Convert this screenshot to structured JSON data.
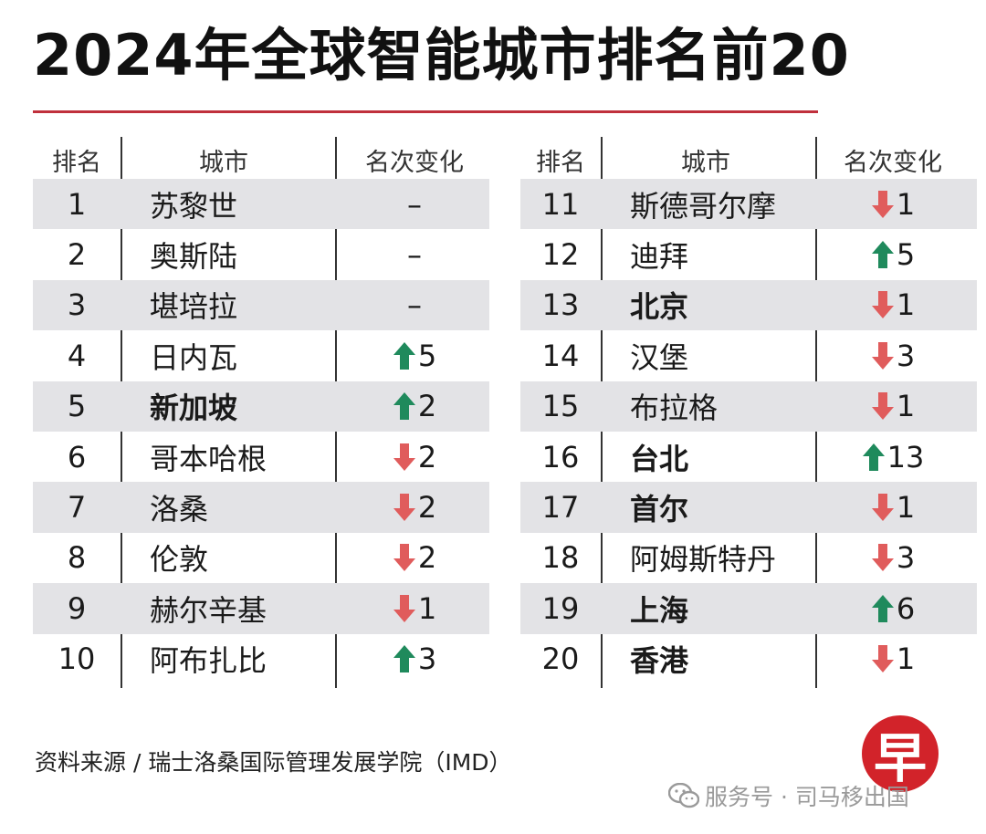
{
  "title": "2024年全球智能城市排名前20",
  "headers": {
    "rank": "排名",
    "city": "城市",
    "change": "名次变化"
  },
  "left_rows": [
    {
      "rank": "1",
      "city": "苏黎世",
      "bold": false,
      "dir": "none",
      "change": "–"
    },
    {
      "rank": "2",
      "city": "奥斯陆",
      "bold": false,
      "dir": "none",
      "change": "–"
    },
    {
      "rank": "3",
      "city": "堪培拉",
      "bold": false,
      "dir": "none",
      "change": "–"
    },
    {
      "rank": "4",
      "city": "日内瓦",
      "bold": false,
      "dir": "up",
      "change": "5"
    },
    {
      "rank": "5",
      "city": "新加坡",
      "bold": true,
      "dir": "up",
      "change": "2"
    },
    {
      "rank": "6",
      "city": "哥本哈根",
      "bold": false,
      "dir": "down",
      "change": "2"
    },
    {
      "rank": "7",
      "city": "洛桑",
      "bold": false,
      "dir": "down",
      "change": "2"
    },
    {
      "rank": "8",
      "city": "伦敦",
      "bold": false,
      "dir": "down",
      "change": "2"
    },
    {
      "rank": "9",
      "city": "赫尔辛基",
      "bold": false,
      "dir": "down",
      "change": "1"
    },
    {
      "rank": "10",
      "city": "阿布扎比",
      "bold": false,
      "dir": "up",
      "change": "3"
    }
  ],
  "right_rows": [
    {
      "rank": "11",
      "city": "斯德哥尔摩",
      "bold": false,
      "dir": "down",
      "change": "1"
    },
    {
      "rank": "12",
      "city": "迪拜",
      "bold": false,
      "dir": "up",
      "change": "5"
    },
    {
      "rank": "13",
      "city": "北京",
      "bold": true,
      "dir": "down",
      "change": "1"
    },
    {
      "rank": "14",
      "city": "汉堡",
      "bold": false,
      "dir": "down",
      "change": "3"
    },
    {
      "rank": "15",
      "city": "布拉格",
      "bold": false,
      "dir": "down",
      "change": "1"
    },
    {
      "rank": "16",
      "city": "台北",
      "bold": true,
      "dir": "up",
      "change": "13"
    },
    {
      "rank": "17",
      "city": "首尔",
      "bold": true,
      "dir": "down",
      "change": "1"
    },
    {
      "rank": "18",
      "city": "阿姆斯特丹",
      "bold": false,
      "dir": "down",
      "change": "3"
    },
    {
      "rank": "19",
      "city": "上海",
      "bold": true,
      "dir": "up",
      "change": "6"
    },
    {
      "rank": "20",
      "city": "香港",
      "bold": true,
      "dir": "down",
      "change": "1"
    }
  ],
  "source": "资料来源 / 瑞士洛桑国际管理发展学院（IMD）",
  "logo_char": "早",
  "watermark": "服务号 · 司马移出国",
  "colors": {
    "up": "#1f8a5c",
    "down": "#e05c5c",
    "rule": "#c0303c",
    "shade": "#e3e3e6"
  },
  "icons": {
    "up": "up-arrow-icon",
    "down": "down-arrow-icon",
    "watermark": "wechat-icon"
  }
}
